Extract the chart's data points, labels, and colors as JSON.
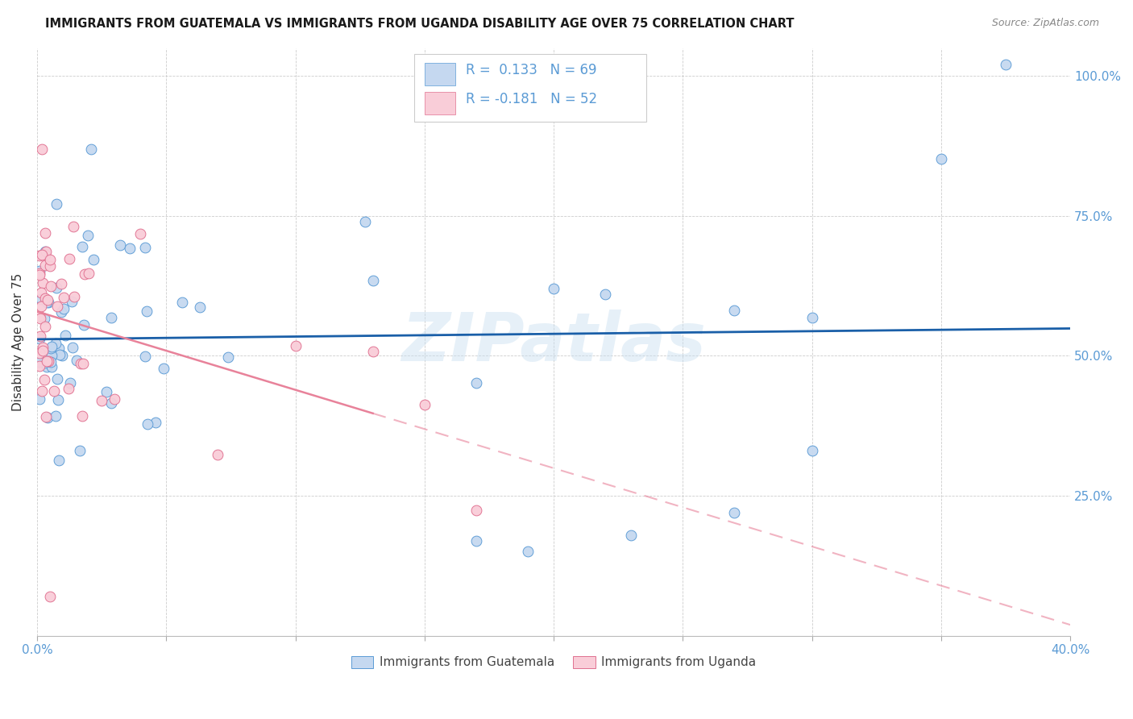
{
  "title": "IMMIGRANTS FROM GUATEMALA VS IMMIGRANTS FROM UGANDA DISABILITY AGE OVER 75 CORRELATION CHART",
  "source": "Source: ZipAtlas.com",
  "ylabel": "Disability Age Over 75",
  "legend_guatemala": "Immigrants from Guatemala",
  "legend_uganda": "Immigrants from Uganda",
  "R_guatemala": 0.133,
  "N_guatemala": 69,
  "R_uganda": -0.181,
  "N_uganda": 52,
  "watermark": "ZIPatlas",
  "blue_fill": "#c5d8f0",
  "blue_edge": "#5b9bd5",
  "pink_fill": "#f9cdd8",
  "pink_edge": "#e07090",
  "blue_line_color": "#1a5fa8",
  "pink_line_color": "#e8829a",
  "xlim": [
    0,
    0.4
  ],
  "ylim": [
    0,
    1.05
  ],
  "xticks": [
    0,
    0.05,
    0.1,
    0.15,
    0.2,
    0.25,
    0.3,
    0.35,
    0.4
  ],
  "yticks_right": [
    0.0,
    0.25,
    0.5,
    0.75,
    1.0
  ],
  "ytick_right_labels": [
    "",
    "25.0%",
    "50.0%",
    "75.0%",
    "100.0%"
  ],
  "grid_color": "#cccccc",
  "title_color": "#1a1a1a",
  "source_color": "#888888",
  "axis_label_color": "#333333",
  "tick_color": "#5b9bd5"
}
